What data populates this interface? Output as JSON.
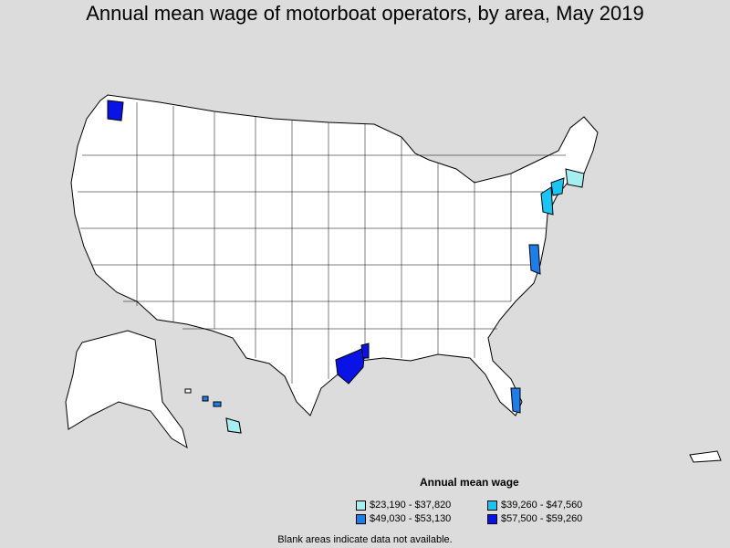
{
  "title": "Annual mean wage of motorboat operators, by area, May 2019",
  "legend": {
    "title": "Annual mean wage",
    "items": [
      {
        "label": "$23,190 - $37,820",
        "color": "#a6eff0"
      },
      {
        "label": "$39,260 - $47,560",
        "color": "#1ac5f4"
      },
      {
        "label": "$49,030 - $53,130",
        "color": "#1f7de8"
      },
      {
        "label": "$57,500 - $59,260",
        "color": "#0a13e6"
      }
    ]
  },
  "footnote": "Blank areas indicate data not available.",
  "highlighted_areas": [
    {
      "region": "Seattle, WA",
      "bin": 3
    },
    {
      "region": "Houston, TX",
      "bin": 3
    },
    {
      "region": "Beaumont, TX",
      "bin": 3
    },
    {
      "region": "Virginia coast",
      "bin": 2
    },
    {
      "region": "New Jersey coast",
      "bin": 1
    },
    {
      "region": "New York area",
      "bin": 1
    },
    {
      "region": "Massachusetts coast",
      "bin": 0
    },
    {
      "region": "Southeast Florida",
      "bin": 2
    },
    {
      "region": "Hawaii",
      "bin": 0
    },
    {
      "region": "Hawaii (Oahu)",
      "bin": 2
    }
  ]
}
